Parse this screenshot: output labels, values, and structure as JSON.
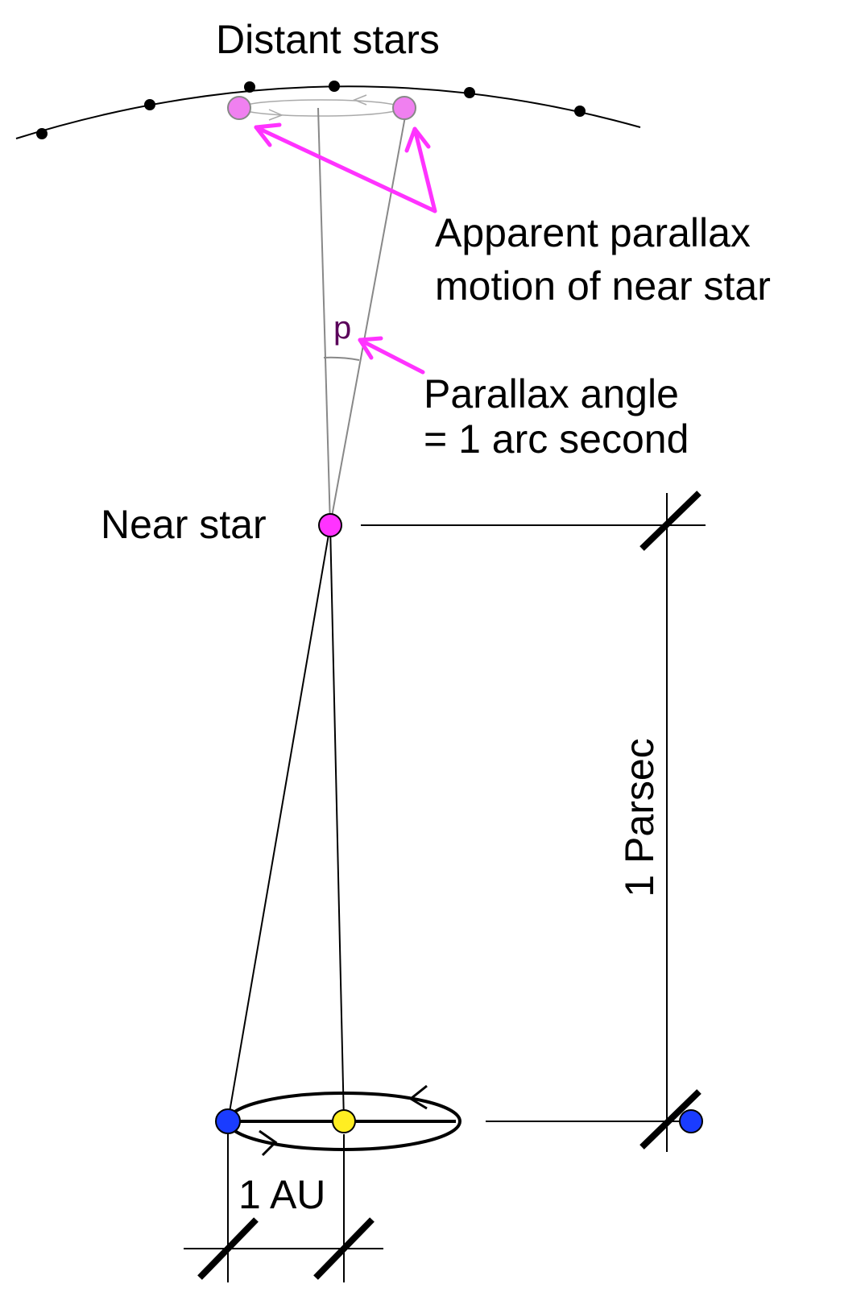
{
  "labels": {
    "distant_stars": "Distant stars",
    "apparent_motion_line1": "Apparent parallax",
    "apparent_motion_line2": "motion of near star",
    "parallax_symbol": "p",
    "parallax_angle_line1": "Parallax angle",
    "parallax_angle_line2": "= 1 arc second",
    "near_star": "Near star",
    "parsec": "1 Parsec",
    "au": "1 AU"
  },
  "colors": {
    "near_star": "#ff33ff",
    "apparent_star": "#f080f0",
    "annotation_arrow": "#ff33ff",
    "earth": "#1a3cff",
    "sun": "#ffee22",
    "parallax_symbol": "#5a005a",
    "construction_lines": "#888888",
    "ink": "#000000"
  }
}
